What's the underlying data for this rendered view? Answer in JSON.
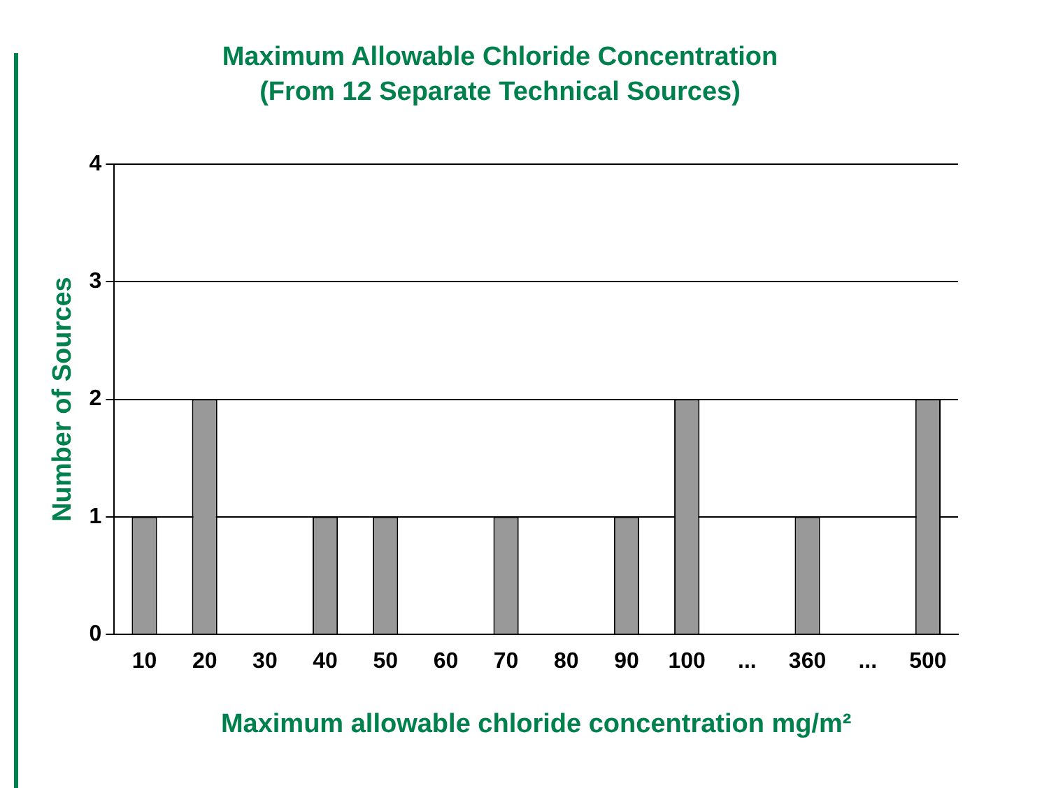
{
  "chart_data": {
    "type": "bar",
    "title": "Maximum Allowable Chloride Concentration",
    "subtitle": "(From 12 Separate Technical Sources)",
    "xlabel": "Maximum allowable chloride concentration mg/m²",
    "ylabel": "Number of Sources",
    "categories": [
      "10",
      "20",
      "30",
      "40",
      "50",
      "60",
      "70",
      "80",
      "90",
      "100",
      "...",
      "360",
      "...",
      "500"
    ],
    "values": [
      1,
      2,
      0,
      1,
      1,
      0,
      1,
      0,
      1,
      2,
      0,
      1,
      0,
      2
    ],
    "color": "#999999",
    "ylim": [
      0,
      4
    ],
    "yticks": [
      0,
      1,
      2,
      3,
      4
    ],
    "grid": "y",
    "legend": false
  }
}
